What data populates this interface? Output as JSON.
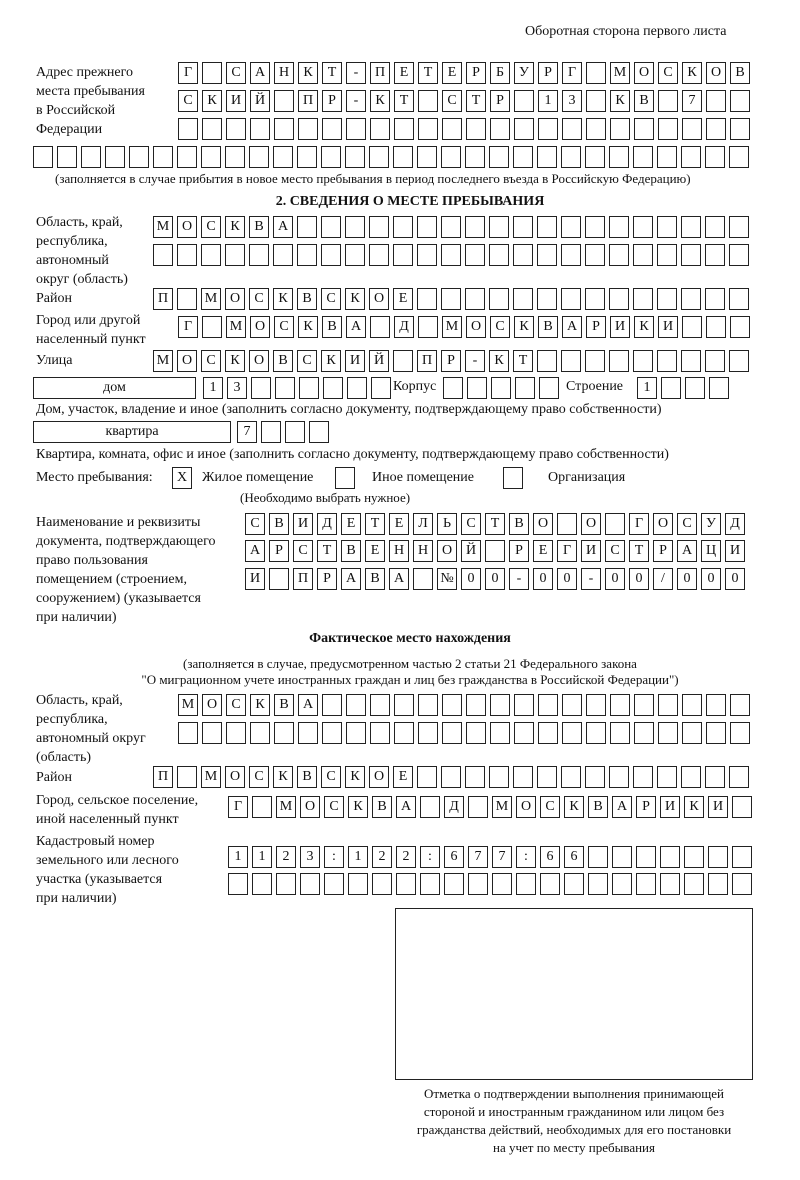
{
  "header": {
    "title": "Оборотная сторона первого листа"
  },
  "previous_address": {
    "label": "Адрес прежнего\nместа пребывания\nв Российской\nФедерации",
    "rows": [
      [
        "Г",
        "",
        "С",
        "А",
        "Н",
        "К",
        "Т",
        "-",
        "П",
        "Е",
        "Т",
        "Е",
        "Р",
        "Б",
        "У",
        "Р",
        "Г",
        "",
        "М",
        "О",
        "С",
        "К",
        "О",
        "В"
      ],
      [
        "С",
        "К",
        "И",
        "Й",
        "",
        "П",
        "Р",
        "-",
        "К",
        "Т",
        "",
        "С",
        "Т",
        "Р",
        "",
        "1",
        "3",
        "",
        "К",
        "В",
        "",
        "7"
      ],
      [],
      []
    ],
    "note": "(заполняется в случае прибытия в новое место пребывания в период последнего въезда в Российскую Федерацию)"
  },
  "section2": {
    "heading": "2. СВЕДЕНИЯ О МЕСТЕ ПРЕБЫВАНИЯ",
    "region_label": "Область, край,\nреспублика,\nавтономный\nокруг (область)",
    "region_rows": [
      [
        "М",
        "О",
        "С",
        "К",
        "В",
        "А"
      ],
      []
    ],
    "district_label": "Район",
    "district": [
      "П",
      "",
      "М",
      "О",
      "С",
      "К",
      "В",
      "С",
      "К",
      "О",
      "Е"
    ],
    "city_label": "Город или другой\nнаселенный пункт",
    "city": [
      "Г",
      "",
      "М",
      "О",
      "С",
      "К",
      "В",
      "А",
      "",
      "Д",
      "",
      "М",
      "О",
      "С",
      "К",
      "В",
      "А",
      "Р",
      "И",
      "К",
      "И"
    ],
    "street_label": "Улица",
    "street": [
      "М",
      "О",
      "С",
      "К",
      "О",
      "В",
      "С",
      "К",
      "И",
      "Й",
      "",
      "П",
      "Р",
      "-",
      "К",
      "Т"
    ],
    "house_type": "дом",
    "house": [
      "1",
      "3"
    ],
    "korpus_label": "Корпус",
    "korpus": [],
    "building_label": "Строение",
    "building": [
      "1"
    ],
    "house_note": "Дом, участок, владение и иное (заполнить согласно документу, подтверждающему право собственности)",
    "apt_type": "квартира",
    "apt": [
      "7"
    ],
    "apt_note": "Квартира, комната, офис и иное (заполнить согласно документу, подтверждающему право собственности)",
    "place_label": "Место пребывания:",
    "place_options": [
      {
        "label": "Жилое помещение",
        "mark": "X"
      },
      {
        "label": "Иное помещение",
        "mark": ""
      },
      {
        "label": "Организация",
        "mark": ""
      }
    ],
    "place_note": "(Необходимо выбрать нужное)",
    "doc_label": "Наименование и реквизиты\nдокумента, подтверждающего\nправо пользования\nпомещением (строением,\nсооружением) (указывается\nпри наличии)",
    "doc_rows": [
      [
        "С",
        "В",
        "И",
        "Д",
        "Е",
        "Т",
        "Е",
        "Л",
        "Ь",
        "С",
        "Т",
        "В",
        "О",
        "",
        "О",
        "",
        "Г",
        "О",
        "С",
        "У",
        "Д"
      ],
      [
        "А",
        "Р",
        "С",
        "Т",
        "В",
        "Е",
        "Н",
        "Н",
        "О",
        "Й",
        "",
        "Р",
        "Е",
        "Г",
        "И",
        "С",
        "Т",
        "Р",
        "А",
        "Ц",
        "И"
      ],
      [
        "И",
        "",
        "П",
        "Р",
        "А",
        "В",
        "А",
        "",
        "№",
        "0",
        "0",
        "-",
        "0",
        "0",
        "-",
        "0",
        "0",
        "/",
        "0",
        "0",
        "0"
      ]
    ]
  },
  "actual": {
    "heading": "Фактическое место нахождения",
    "note1": "(заполняется в случае, предусмотренном частью 2 статьи 21 Федерального закона",
    "note2": "\"О миграционном учете иностранных граждан и лиц без гражданства в Российской Федерации\")",
    "region_label": "Область, край,\nреспублика,\nавтономный округ\n(область)",
    "region_rows": [
      [
        "М",
        "О",
        "С",
        "К",
        "В",
        "А"
      ],
      []
    ],
    "district_label": "Район",
    "district": [
      "П",
      "",
      "М",
      "О",
      "С",
      "К",
      "В",
      "С",
      "К",
      "О",
      "Е"
    ],
    "city_label": "Город, сельское поселение,\nиной населенный пункт",
    "city": [
      "Г",
      "",
      "М",
      "О",
      "С",
      "К",
      "В",
      "А",
      "",
      "Д",
      "",
      "М",
      "О",
      "С",
      "К",
      "В",
      "А",
      "Р",
      "И",
      "К",
      "И"
    ],
    "cadastre_label": "Кадастровый номер\nземельного или лесного\nучастка (указывается\nпри наличии)",
    "cadastre_rows": [
      [
        "1",
        "1",
        "2",
        "3",
        ":",
        "1",
        "2",
        "2",
        ":",
        "6",
        "7",
        "7",
        ":",
        "6",
        "6"
      ],
      []
    ]
  },
  "stamp": {
    "caption": "Отметка о подтверждении выполнения принимающей\nстороной и иностранным гражданином или лицом без\nгражданства действий, необходимых для его постановки\nна учет по месту пребывания"
  }
}
